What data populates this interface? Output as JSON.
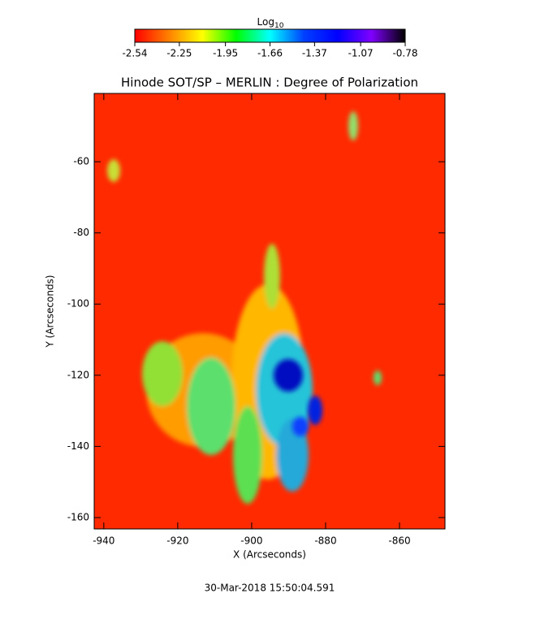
{
  "chart_data": {
    "type": "image",
    "title": "Hinode SOT/SP – MERLIN : Degree of Polarization",
    "x_label": "X (Arcseconds)",
    "y_label": "Y (Arcseconds)",
    "footer": "30-Mar-2018 15:50:04.591",
    "xlim": [
      -942.6,
      -847.7
    ],
    "ylim": [
      -163.2,
      -40.8
    ],
    "xticks": [
      -940,
      -920,
      -900,
      -880,
      -860
    ],
    "yticks": [
      -160,
      -140,
      -120,
      -100,
      -80,
      -60
    ],
    "colorbar": {
      "label": "Log",
      "label_sub": "10",
      "lim": [
        -2.54,
        -0.78
      ],
      "ticks": [
        -2.54,
        -2.25,
        -1.95,
        -1.66,
        -1.37,
        -1.07,
        -0.78
      ],
      "colormap": [
        "#ff0000",
        "#ff8000",
        "#ffff00",
        "#00ff00",
        "#00ffff",
        "#0040ff",
        "#0000ff",
        "#8000ff",
        "#000000"
      ]
    }
  }
}
